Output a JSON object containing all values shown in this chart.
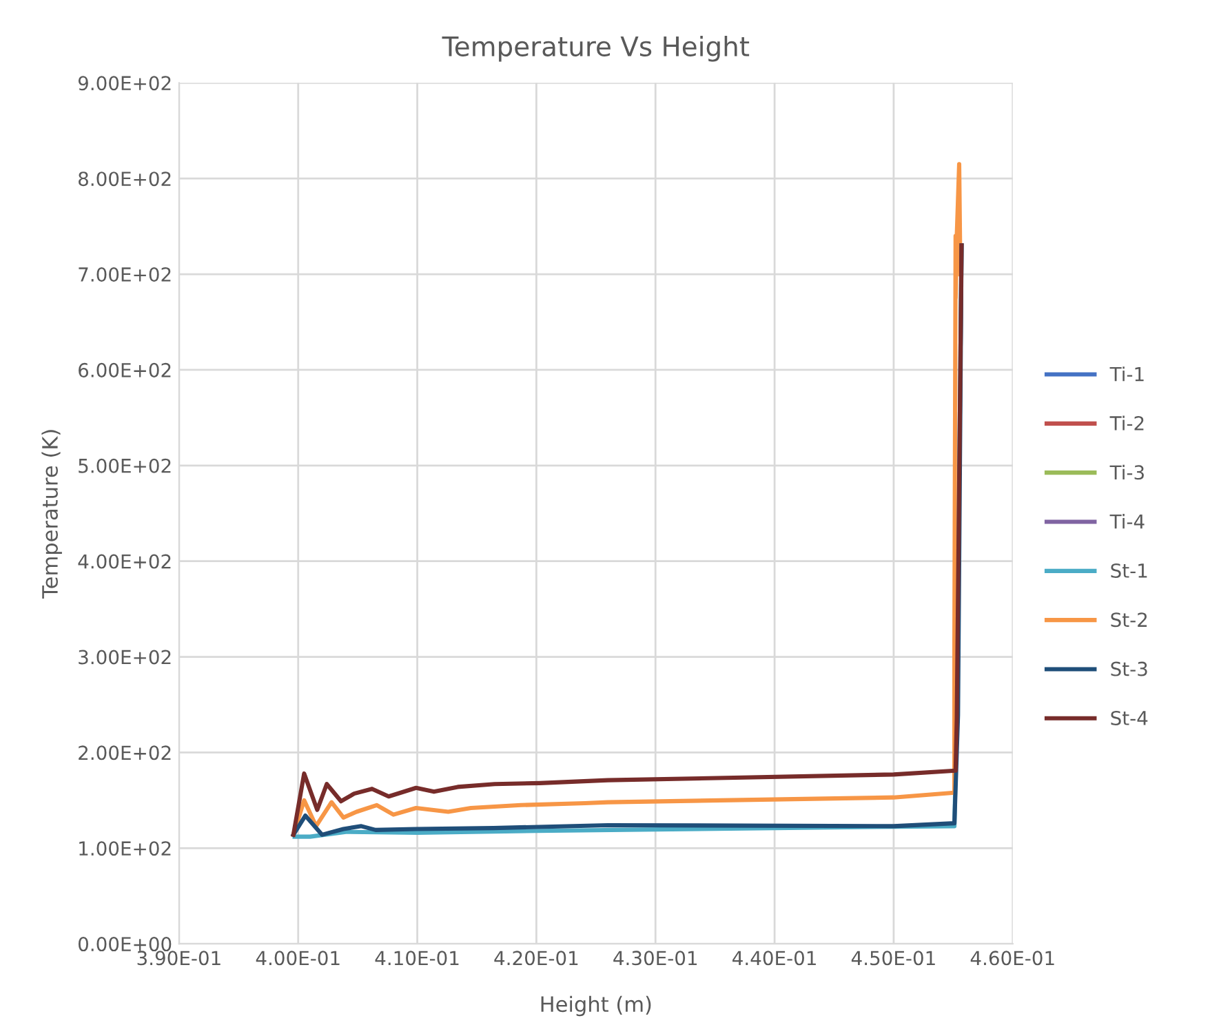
{
  "chart_data": {
    "type": "line",
    "title": "Temperature Vs Height",
    "xlabel": "Height (m)",
    "ylabel": "Temperature (K)",
    "xlim": [
      0.39,
      0.46
    ],
    "ylim": [
      0,
      900
    ],
    "xticks": [
      {
        "value": 0.39,
        "label": "3.90E-01"
      },
      {
        "value": 0.4,
        "label": "4.00E-01"
      },
      {
        "value": 0.41,
        "label": "4.10E-01"
      },
      {
        "value": 0.42,
        "label": "4.20E-01"
      },
      {
        "value": 0.43,
        "label": "4.30E-01"
      },
      {
        "value": 0.44,
        "label": "4.40E-01"
      },
      {
        "value": 0.45,
        "label": "4.50E-01"
      },
      {
        "value": 0.46,
        "label": "4.60E-01"
      }
    ],
    "yticks": [
      {
        "value": 0,
        "label": "0.00E+00"
      },
      {
        "value": 100,
        "label": "1.00E+02"
      },
      {
        "value": 200,
        "label": "2.00E+02"
      },
      {
        "value": 300,
        "label": "3.00E+02"
      },
      {
        "value": 400,
        "label": "4.00E+02"
      },
      {
        "value": 500,
        "label": "5.00E+02"
      },
      {
        "value": 600,
        "label": "6.00E+02"
      },
      {
        "value": 700,
        "label": "7.00E+02"
      },
      {
        "value": 800,
        "label": "8.00E+02"
      },
      {
        "value": 900,
        "label": "9.00E+02"
      }
    ],
    "grid": true,
    "legend": "right",
    "marker": "none",
    "line_style": "solid",
    "series": [
      {
        "name": "Ti-1",
        "color": "#4472c4"
      },
      {
        "name": "Ti-2",
        "color": "#c0504d"
      },
      {
        "name": "Ti-3",
        "color": "#9bbb59"
      },
      {
        "name": "Ti-4",
        "color": "#8064a2"
      },
      {
        "name": "St-1",
        "color": "#4bacc6",
        "x": [
          0.3997,
          0.401,
          0.404,
          0.41,
          0.42,
          0.44,
          0.4551,
          0.4553,
          0.4557
        ],
        "values": [
          112,
          112,
          117,
          116,
          118,
          121,
          123,
          240,
          730
        ]
      },
      {
        "name": "St-2",
        "color": "#f79646",
        "x": [
          0.3996,
          0.4005,
          0.4015,
          0.4028,
          0.4038,
          0.4049,
          0.4066,
          0.408,
          0.4099,
          0.4126,
          0.4145,
          0.4187,
          0.4241,
          0.426,
          0.45,
          0.4551,
          0.4551,
          0.4552,
          0.4552,
          0.4553,
          0.4555,
          0.4556
        ],
        "values": [
          114,
          150,
          123,
          148,
          132,
          138,
          145,
          135,
          142,
          138,
          142,
          145,
          147,
          148,
          153,
          158,
          320,
          740,
          675,
          740,
          815,
          700
        ]
      },
      {
        "name": "St-3",
        "color": "#1f4e79",
        "x": [
          0.3996,
          0.4006,
          0.402,
          0.4038,
          0.4053,
          0.4065,
          0.4099,
          0.4164,
          0.426,
          0.45,
          0.4551,
          0.4554,
          0.4557
        ],
        "values": [
          114,
          134,
          114,
          120,
          123,
          119,
          120,
          121,
          124,
          123,
          126,
          239,
          730
        ]
      },
      {
        "name": "St-4",
        "color": "#772c2a",
        "x": [
          0.3996,
          0.4005,
          0.4016,
          0.4024,
          0.4036,
          0.4047,
          0.4062,
          0.4076,
          0.4099,
          0.4114,
          0.4134,
          0.4165,
          0.4203,
          0.426,
          0.45,
          0.4552,
          0.4553,
          0.4557
        ],
        "values": [
          114,
          178,
          140,
          167,
          149,
          157,
          162,
          154,
          163,
          159,
          164,
          167,
          168,
          171,
          177,
          181,
          235,
          730
        ]
      }
    ]
  }
}
